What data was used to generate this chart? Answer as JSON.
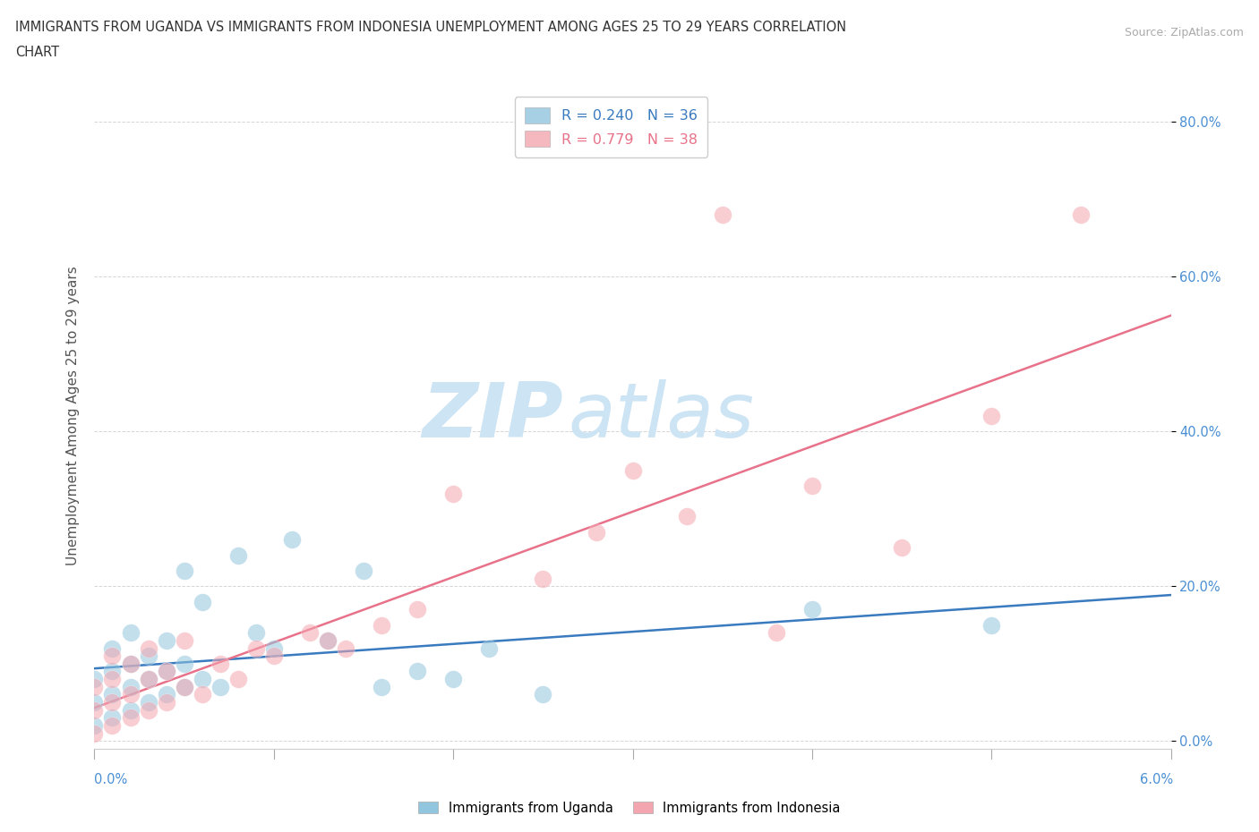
{
  "title_line1": "IMMIGRANTS FROM UGANDA VS IMMIGRANTS FROM INDONESIA UNEMPLOYMENT AMONG AGES 25 TO 29 YEARS CORRELATION",
  "title_line2": "CHART",
  "source": "Source: ZipAtlas.com",
  "ylabel": "Unemployment Among Ages 25 to 29 years",
  "xlim": [
    0.0,
    0.06
  ],
  "ylim": [
    -0.01,
    0.85
  ],
  "yticks": [
    0.0,
    0.2,
    0.4,
    0.6,
    0.8
  ],
  "ytick_labels": [
    "0.0%",
    "20.0%",
    "40.0%",
    "60.0%",
    "80.0%"
  ],
  "legend_uganda": "Immigrants from Uganda",
  "legend_indonesia": "Immigrants from Indonesia",
  "R_uganda": 0.24,
  "N_uganda": 36,
  "R_indonesia": 0.779,
  "N_indonesia": 38,
  "color_uganda": "#92c5de",
  "color_indonesia": "#f4a6b0",
  "line_color_uganda": "#3a7bbf",
  "line_color_indonesia": "#e8728a",
  "watermark_zip": "ZIP",
  "watermark_atlas": "atlas",
  "watermark_color": "#cce4f4",
  "uganda_x": [
    0.0,
    0.0,
    0.0,
    0.001,
    0.001,
    0.001,
    0.001,
    0.002,
    0.002,
    0.002,
    0.002,
    0.003,
    0.003,
    0.003,
    0.004,
    0.004,
    0.004,
    0.005,
    0.005,
    0.005,
    0.006,
    0.006,
    0.007,
    0.008,
    0.009,
    0.01,
    0.011,
    0.013,
    0.015,
    0.016,
    0.018,
    0.02,
    0.022,
    0.025,
    0.04,
    0.05
  ],
  "uganda_y": [
    0.02,
    0.05,
    0.08,
    0.03,
    0.06,
    0.09,
    0.12,
    0.04,
    0.07,
    0.1,
    0.14,
    0.05,
    0.08,
    0.11,
    0.06,
    0.09,
    0.13,
    0.07,
    0.1,
    0.22,
    0.08,
    0.18,
    0.07,
    0.24,
    0.14,
    0.12,
    0.26,
    0.13,
    0.22,
    0.07,
    0.09,
    0.08,
    0.12,
    0.06,
    0.17,
    0.15
  ],
  "indonesia_x": [
    0.0,
    0.0,
    0.0,
    0.001,
    0.001,
    0.001,
    0.001,
    0.002,
    0.002,
    0.002,
    0.003,
    0.003,
    0.003,
    0.004,
    0.004,
    0.005,
    0.005,
    0.006,
    0.007,
    0.008,
    0.009,
    0.01,
    0.012,
    0.013,
    0.014,
    0.016,
    0.018,
    0.02,
    0.025,
    0.028,
    0.03,
    0.033,
    0.035,
    0.038,
    0.04,
    0.045,
    0.05,
    0.055
  ],
  "indonesia_y": [
    0.01,
    0.04,
    0.07,
    0.02,
    0.05,
    0.08,
    0.11,
    0.03,
    0.06,
    0.1,
    0.04,
    0.08,
    0.12,
    0.05,
    0.09,
    0.07,
    0.13,
    0.06,
    0.1,
    0.08,
    0.12,
    0.11,
    0.14,
    0.13,
    0.12,
    0.15,
    0.17,
    0.32,
    0.21,
    0.27,
    0.35,
    0.29,
    0.68,
    0.14,
    0.33,
    0.25,
    0.42,
    0.68
  ]
}
